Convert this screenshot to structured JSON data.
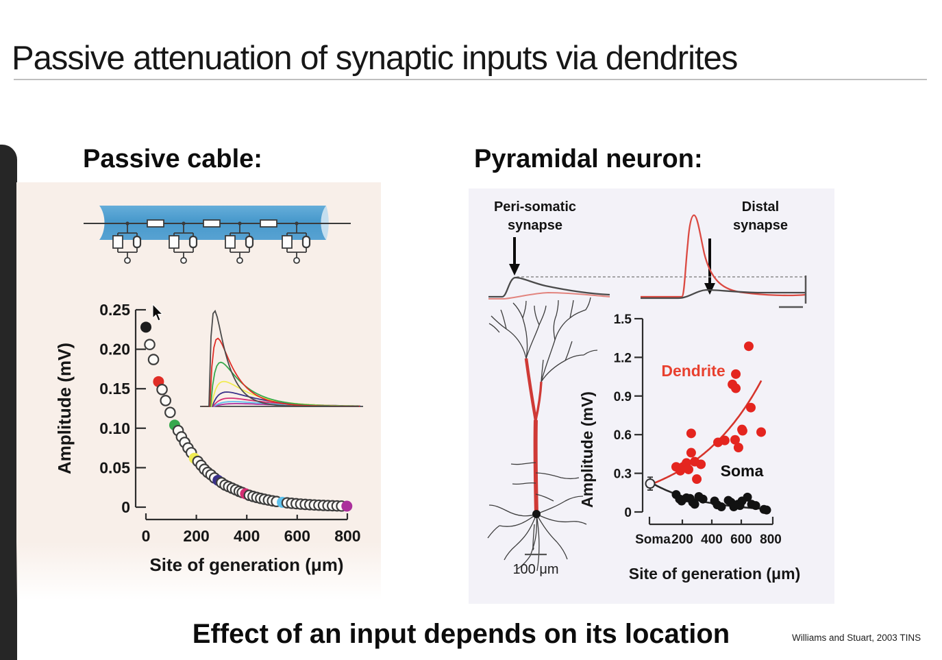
{
  "slide": {
    "title": "Passive attenuation of synaptic inputs via dendrites",
    "statement": "Effect of an input depends on its location",
    "citation": "Williams and Stuart, 2003 TINS"
  },
  "left_section": {
    "heading": "Passive cable:"
  },
  "right_section": {
    "heading": "Pyramidal neuron:",
    "trace_labels": {
      "left_line1": "Peri-somatic",
      "left_line2": "synapse",
      "right_line1": "Distal",
      "right_line2": "synapse"
    },
    "neuron_scalebar": "100 μm"
  },
  "palette": {
    "black": "#1d1d1d",
    "open_stroke": "#3d3d3d",
    "open_fill": "#fdfbf8",
    "red": "#e02d26",
    "green": "#35a84c",
    "yellow": "#f0ec52",
    "navy": "#3a3189",
    "crimson": "#d42e72",
    "cyan": "#5ec1ec",
    "magenta": "#ab2f9c",
    "cable_blue": "#4d9fd2",
    "dendrite_red": "#e4251f",
    "soma_black": "#121212",
    "panel_left_bg": "#f8efe9",
    "panel_right_bg": "#f3f2f8"
  },
  "chart_data": [
    {
      "id": "passive-cable-attenuation",
      "type": "scatter",
      "title": "",
      "xlabel": "Site of generation (μm)",
      "ylabel": "Amplitude (mV)",
      "xlim": [
        0,
        800
      ],
      "ylim": [
        0,
        0.25
      ],
      "grid": false,
      "legend": "none",
      "xticks": [
        0,
        200,
        400,
        600,
        800
      ],
      "xtick_labels": [
        "0",
        "200",
        "400",
        "600",
        "800"
      ],
      "yticks": [
        0,
        0.05,
        0.1,
        0.15,
        0.2,
        0.25
      ],
      "ytick_labels": [
        "0",
        "0.05",
        "0.10",
        "0.15",
        "0.20",
        "0.25"
      ],
      "points_note": "EPSP amplitude vs distance; [x um, y mV, color]",
      "points": [
        [
          0,
          0.228,
          "black"
        ],
        [
          15,
          0.206,
          "open"
        ],
        [
          30,
          0.187,
          "open"
        ],
        [
          50,
          0.159,
          "red"
        ],
        [
          64,
          0.149,
          "open"
        ],
        [
          78,
          0.135,
          "open"
        ],
        [
          96,
          0.12,
          "open"
        ],
        [
          114,
          0.104,
          "green"
        ],
        [
          128,
          0.097,
          "open"
        ],
        [
          141,
          0.089,
          "open"
        ],
        [
          154,
          0.082,
          "open"
        ],
        [
          167,
          0.075,
          "open"
        ],
        [
          180,
          0.069,
          "open"
        ],
        [
          192,
          0.062,
          "yellow"
        ],
        [
          206,
          0.058,
          "open"
        ],
        [
          219,
          0.053,
          "open"
        ],
        [
          232,
          0.048,
          "open"
        ],
        [
          245,
          0.044,
          "open"
        ],
        [
          258,
          0.041,
          "open"
        ],
        [
          272,
          0.037,
          "open"
        ],
        [
          286,
          0.034,
          "navy"
        ],
        [
          300,
          0.031,
          "open"
        ],
        [
          314,
          0.028,
          "open"
        ],
        [
          328,
          0.026,
          "open"
        ],
        [
          342,
          0.024,
          "open"
        ],
        [
          356,
          0.022,
          "open"
        ],
        [
          370,
          0.02,
          "open"
        ],
        [
          382,
          0.0185,
          "open"
        ],
        [
          395,
          0.017,
          "crimson"
        ],
        [
          410,
          0.015,
          "open"
        ],
        [
          425,
          0.0136,
          "open"
        ],
        [
          440,
          0.0123,
          "open"
        ],
        [
          455,
          0.0111,
          "open"
        ],
        [
          470,
          0.01,
          "open"
        ],
        [
          486,
          0.009,
          "open"
        ],
        [
          502,
          0.008,
          "open"
        ],
        [
          518,
          0.0072,
          "open"
        ],
        [
          541,
          0.0062,
          "cyan"
        ],
        [
          560,
          0.0055,
          "open"
        ],
        [
          578,
          0.0049,
          "open"
        ],
        [
          596,
          0.0044,
          "open"
        ],
        [
          614,
          0.0039,
          "open"
        ],
        [
          632,
          0.0035,
          "open"
        ],
        [
          650,
          0.0031,
          "open"
        ],
        [
          668,
          0.0028,
          "open"
        ],
        [
          686,
          0.0025,
          "open"
        ],
        [
          704,
          0.0022,
          "open"
        ],
        [
          722,
          0.002,
          "open"
        ],
        [
          740,
          0.0018,
          "open"
        ],
        [
          758,
          0.0016,
          "open"
        ],
        [
          776,
          0.0014,
          "open"
        ],
        [
          797,
          0.0013,
          "magenta"
        ]
      ],
      "inset": {
        "description": "EPSP waveforms at the colored generation sites, normalized to somatic response",
        "series": [
          {
            "color_key": "black",
            "rel_amplitude": 1.0
          },
          {
            "color_key": "red",
            "rel_amplitude": 0.71
          },
          {
            "color_key": "green",
            "rel_amplitude": 0.46
          },
          {
            "color_key": "yellow",
            "rel_amplitude": 0.26
          },
          {
            "color_key": "navy",
            "rel_amplitude": 0.15
          },
          {
            "color_key": "crimson",
            "rel_amplitude": 0.086
          },
          {
            "color_key": "cyan",
            "rel_amplitude": 0.05
          },
          {
            "color_key": "magenta",
            "rel_amplitude": 0.029
          }
        ]
      }
    },
    {
      "id": "pyramidal-neuron-attenuation",
      "type": "scatter",
      "title": "",
      "xlabel": "Site of generation (μm)",
      "ylabel": "Amplitude (mV)",
      "xlim": [
        0,
        800
      ],
      "ylim": [
        0,
        1.5
      ],
      "grid": false,
      "legend": "inline-text",
      "xticks": [
        0,
        200,
        400,
        600,
        800
      ],
      "xtick_labels": [
        "Soma",
        "200",
        "400",
        "600",
        "800"
      ],
      "yticks": [
        0,
        0.3,
        0.6,
        0.9,
        1.2,
        1.5
      ],
      "ytick_labels": [
        "0",
        "0.3",
        "0.6",
        "0.9",
        "1.2",
        "1.5"
      ],
      "soma_reference_point": {
        "x": 0,
        "y": 0.22,
        "err": 0.05,
        "style": "open-circle-error-bar"
      },
      "series": [
        {
          "name": "Dendrite",
          "color": "#e4251f",
          "marker": "filled-circle",
          "points": [
            [
              158,
              0.35
            ],
            [
              186,
              0.32
            ],
            [
              205,
              0.35
            ],
            [
              228,
              0.38
            ],
            [
              242,
              0.33
            ],
            [
              260,
              0.61
            ],
            [
              260,
              0.46
            ],
            [
              284,
              0.39
            ],
            [
              298,
              0.255
            ],
            [
              326,
              0.37
            ],
            [
              442,
              0.54
            ],
            [
              488,
              0.555
            ],
            [
              540,
              0.99
            ],
            [
              558,
              0.56
            ],
            [
              563,
              1.07
            ],
            [
              563,
              0.96
            ],
            [
              581,
              0.5
            ],
            [
              605,
              0.64
            ],
            [
              609,
              0.63
            ],
            [
              651,
              1.286
            ],
            [
              665,
              0.81
            ],
            [
              735,
              0.62
            ]
          ],
          "trend": {
            "type": "exp_rise",
            "y0": 0.22,
            "lambda_um": 480,
            "x_end": 740
          }
        },
        {
          "name": "Soma",
          "color": "#121212",
          "marker": "filled-circle",
          "points": [
            [
              158,
              0.135
            ],
            [
              181,
              0.1
            ],
            [
              195,
              0.085
            ],
            [
              228,
              0.11
            ],
            [
              252,
              0.105
            ],
            [
              270,
              0.075
            ],
            [
              284,
              0.06
            ],
            [
              312,
              0.12
            ],
            [
              340,
              0.1
            ],
            [
              419,
              0.085
            ],
            [
              437,
              0.055
            ],
            [
              465,
              0.04
            ],
            [
              512,
              0.09
            ],
            [
              530,
              0.075
            ],
            [
              549,
              0.04
            ],
            [
              577,
              0.06
            ],
            [
              591,
              0.05
            ],
            [
              605,
              0.085
            ],
            [
              642,
              0.115
            ],
            [
              670,
              0.06
            ],
            [
              698,
              0.05
            ],
            [
              754,
              0.02
            ],
            [
              772,
              0.015
            ]
          ],
          "trend": {
            "type": "exp_decay",
            "y0": 0.22,
            "lambda_um": 340,
            "x_end": 770
          }
        }
      ]
    }
  ]
}
